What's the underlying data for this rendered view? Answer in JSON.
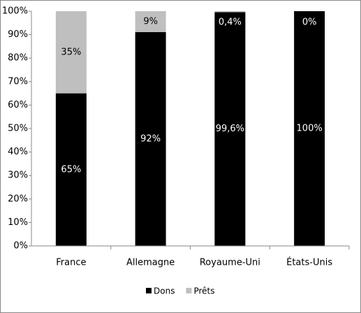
{
  "chart_data": {
    "type": "bar",
    "stacked": "percent",
    "categories": [
      "France",
      "Allemagne",
      "Royaume-Uni",
      "États-Unis"
    ],
    "series": [
      {
        "name": "Dons",
        "color": "#000000",
        "values": [
          65,
          92,
          99.6,
          100
        ],
        "value_labels": [
          "65%",
          "92%",
          "99,6%",
          "100%"
        ]
      },
      {
        "name": "Prêts",
        "color": "#bfbfbf",
        "values": [
          35,
          9,
          0.4,
          0
        ],
        "value_labels": [
          "35%",
          "9%",
          "0,4%",
          "0%"
        ]
      }
    ],
    "ylim": [
      0,
      100
    ],
    "yticks": [
      {
        "value": 0,
        "label": "0%"
      },
      {
        "value": 10,
        "label": "10%"
      },
      {
        "value": 20,
        "label": "20%"
      },
      {
        "value": 30,
        "label": "30%"
      },
      {
        "value": 40,
        "label": "40%"
      },
      {
        "value": 50,
        "label": "50%"
      },
      {
        "value": 60,
        "label": "60%"
      },
      {
        "value": 70,
        "label": "70%"
      },
      {
        "value": 80,
        "label": "80%"
      },
      {
        "value": 90,
        "label": "90%"
      },
      {
        "value": 100,
        "label": "100%"
      }
    ],
    "legend": "bottom"
  }
}
